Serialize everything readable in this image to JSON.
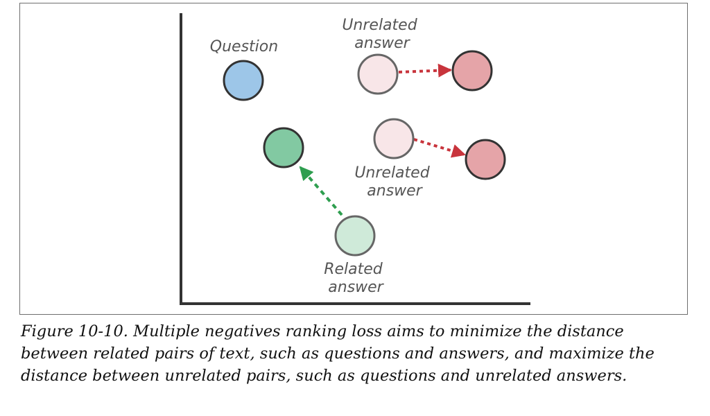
{
  "diagram": {
    "nodes": {
      "question": {
        "label_lines": [
          "Question"
        ],
        "fill": "#9DC6E8"
      },
      "related_answer": {
        "label_lines": [
          "Related",
          "answer"
        ],
        "fill": "#CFEAD9"
      },
      "related_answer_moved": {
        "fill": "#82C9A2"
      },
      "unrelated_answer_top": {
        "label_lines": [
          "Unrelated",
          "answer"
        ],
        "fill": "#F8E6E8"
      },
      "unrelated_answer_top_moved": {
        "fill": "#E5A4A8"
      },
      "unrelated_answer_bottom": {
        "label_lines": [
          "Unrelated",
          "answer"
        ],
        "fill": "#F8E6E8"
      },
      "unrelated_answer_bottom_moved": {
        "fill": "#E5A4A8"
      }
    },
    "arrows": {
      "pull_color": "#2E9E4F",
      "push_color": "#C8343C"
    },
    "outline_color": "#333333",
    "axis_color": "#333333"
  },
  "caption": {
    "label": "Figure 10-10.",
    "text": "Multiple negatives ranking loss aims to minimize the distance between related pairs of text, such as questions and answers, and maximize the distance between unrelated pairs, such as questions and unrelated answers."
  }
}
